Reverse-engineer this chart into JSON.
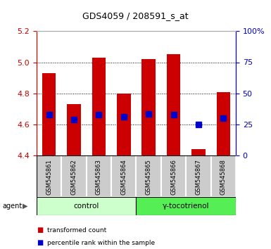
{
  "title": "GDS4059 / 208591_s_at",
  "samples": [
    "GSM545861",
    "GSM545862",
    "GSM545863",
    "GSM545864",
    "GSM545865",
    "GSM545866",
    "GSM545867",
    "GSM545868"
  ],
  "bar_heights": [
    4.93,
    4.73,
    5.03,
    4.8,
    5.02,
    5.05,
    4.44,
    4.81
  ],
  "bar_base": 4.4,
  "blue_markers": [
    4.665,
    4.63,
    4.665,
    4.648,
    4.668,
    4.665,
    4.6,
    4.64
  ],
  "bar_color": "#cc0000",
  "blue_color": "#0000cc",
  "ylim_left": [
    4.4,
    5.2
  ],
  "ylim_right": [
    0,
    100
  ],
  "yticks_left": [
    4.4,
    4.6,
    4.8,
    5.0,
    5.2
  ],
  "yticks_right": [
    0,
    25,
    50,
    75,
    100
  ],
  "ytick_labels_right": [
    "0",
    "25",
    "50",
    "75",
    "100%"
  ],
  "groups": [
    {
      "label": "control",
      "indices": [
        0,
        1,
        2,
        3
      ],
      "color": "#ccffcc"
    },
    {
      "label": "γ-tocotrienol",
      "indices": [
        4,
        5,
        6,
        7
      ],
      "color": "#55ee55"
    }
  ],
  "agent_label": "agent",
  "legend_items": [
    {
      "color": "#cc0000",
      "label": "transformed count"
    },
    {
      "color": "#0000cc",
      "label": "percentile rank within the sample"
    }
  ],
  "title_color": "#000000",
  "left_axis_color": "#cc0000",
  "right_axis_color": "#0000cc",
  "bar_width": 0.55,
  "marker_size": 6,
  "label_bg_color": "#cccccc",
  "label_edge_color": "#ffffff"
}
